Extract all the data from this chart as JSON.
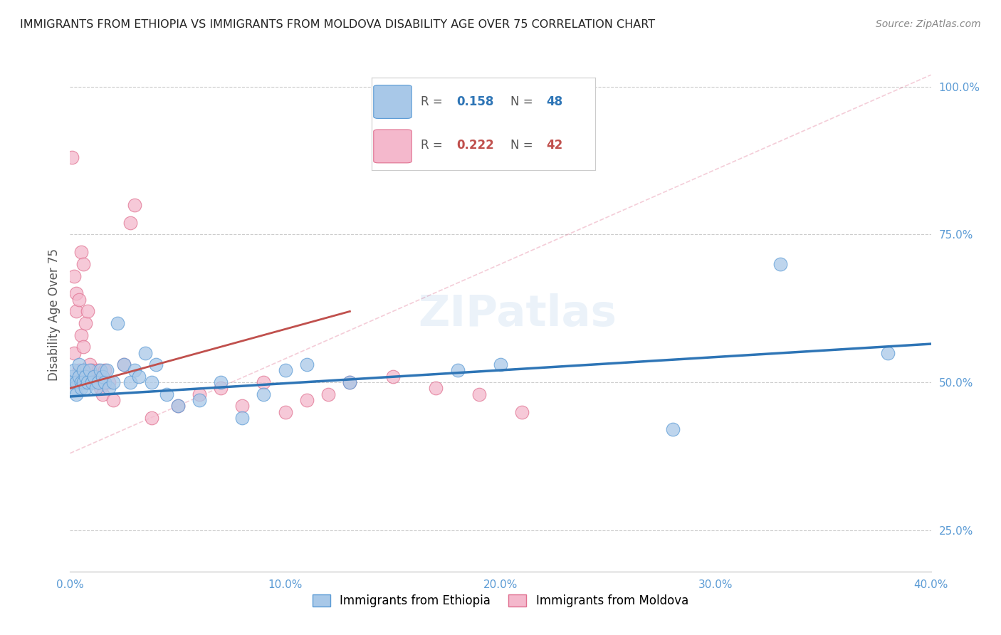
{
  "title": "IMMIGRANTS FROM ETHIOPIA VS IMMIGRANTS FROM MOLDOVA DISABILITY AGE OVER 75 CORRELATION CHART",
  "source": "Source: ZipAtlas.com",
  "ylabel": "Disability Age Over 75",
  "background_color": "#ffffff",
  "grid_color": "#cccccc",
  "title_color": "#222222",
  "right_axis_color": "#5b9bd5",
  "watermark": "ZIPatlas",
  "ethiopia_color": "#a8c8e8",
  "ethiopia_edge": "#5b9bd5",
  "moldova_color": "#f4b8cc",
  "moldova_edge": "#e07090",
  "ethiopia_R": 0.158,
  "ethiopia_N": 48,
  "moldova_R": 0.222,
  "moldova_N": 42,
  "xlim": [
    0.0,
    0.4
  ],
  "ylim": [
    0.18,
    1.05
  ],
  "eth_x": [
    0.001,
    0.001,
    0.002,
    0.002,
    0.003,
    0.003,
    0.004,
    0.004,
    0.005,
    0.005,
    0.006,
    0.006,
    0.007,
    0.007,
    0.008,
    0.009,
    0.01,
    0.011,
    0.012,
    0.013,
    0.014,
    0.015,
    0.016,
    0.017,
    0.018,
    0.02,
    0.022,
    0.025,
    0.028,
    0.03,
    0.032,
    0.035,
    0.038,
    0.04,
    0.045,
    0.05,
    0.06,
    0.07,
    0.08,
    0.09,
    0.1,
    0.11,
    0.13,
    0.18,
    0.2,
    0.28,
    0.33,
    0.38
  ],
  "eth_y": [
    0.5,
    0.51,
    0.49,
    0.52,
    0.5,
    0.48,
    0.51,
    0.53,
    0.5,
    0.49,
    0.52,
    0.5,
    0.51,
    0.49,
    0.5,
    0.52,
    0.5,
    0.51,
    0.49,
    0.5,
    0.52,
    0.51,
    0.5,
    0.52,
    0.49,
    0.5,
    0.6,
    0.53,
    0.5,
    0.52,
    0.51,
    0.55,
    0.5,
    0.53,
    0.48,
    0.46,
    0.47,
    0.5,
    0.44,
    0.48,
    0.52,
    0.53,
    0.5,
    0.52,
    0.53,
    0.42,
    0.7,
    0.55
  ],
  "mol_x": [
    0.001,
    0.001,
    0.002,
    0.002,
    0.003,
    0.003,
    0.004,
    0.004,
    0.005,
    0.005,
    0.006,
    0.006,
    0.007,
    0.007,
    0.008,
    0.009,
    0.01,
    0.011,
    0.012,
    0.013,
    0.014,
    0.015,
    0.016,
    0.018,
    0.02,
    0.025,
    0.028,
    0.03,
    0.038,
    0.05,
    0.06,
    0.07,
    0.08,
    0.09,
    0.1,
    0.11,
    0.12,
    0.13,
    0.15,
    0.17,
    0.19,
    0.21
  ],
  "mol_y": [
    0.88,
    0.5,
    0.68,
    0.55,
    0.65,
    0.62,
    0.64,
    0.52,
    0.72,
    0.58,
    0.7,
    0.56,
    0.6,
    0.5,
    0.62,
    0.53,
    0.52,
    0.5,
    0.51,
    0.52,
    0.49,
    0.48,
    0.52,
    0.5,
    0.47,
    0.53,
    0.77,
    0.8,
    0.44,
    0.46,
    0.48,
    0.49,
    0.46,
    0.5,
    0.45,
    0.47,
    0.48,
    0.5,
    0.51,
    0.49,
    0.48,
    0.45
  ],
  "eth_line_x": [
    0.0,
    0.4
  ],
  "eth_line_y": [
    0.476,
    0.565
  ],
  "mol_line_x": [
    0.0,
    0.13
  ],
  "mol_line_y": [
    0.49,
    0.62
  ],
  "dash_line_x": [
    0.0,
    0.4
  ],
  "dash_line_y": [
    0.38,
    1.02
  ],
  "yticks": [
    0.25,
    0.5,
    0.75,
    1.0
  ],
  "ytick_labels": [
    "25.0%",
    "50.0%",
    "75.0%",
    "100.0%"
  ],
  "xticks": [
    0.0,
    0.1,
    0.2,
    0.3,
    0.4
  ],
  "xtick_labels": [
    "0.0%",
    "10.0%",
    "20.0%",
    "30.0%",
    "40.0%"
  ]
}
